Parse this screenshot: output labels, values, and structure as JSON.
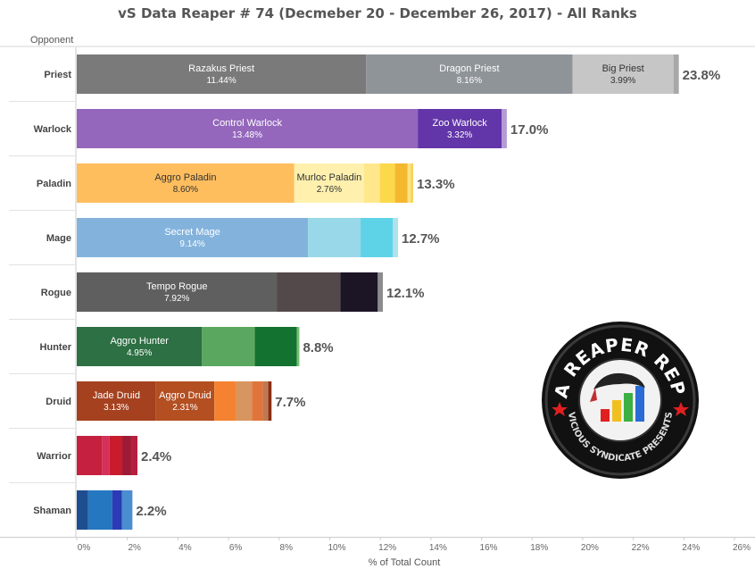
{
  "title": "vS Data Reaper # 74 (Decmeber  20 - December 26, 2017) - All Ranks",
  "chart_data": {
    "type": "bar",
    "orientation": "horizontal",
    "stacked": true,
    "title": "vS Data Reaper # 74 (Decmeber  20 - December 26, 2017) - All Ranks",
    "ylabel": "Opponent",
    "xlabel": "% of Total Count",
    "xlim": [
      0,
      26
    ],
    "xticks": [
      "0%",
      "2%",
      "4%",
      "6%",
      "8%",
      "10%",
      "12%",
      "14%",
      "16%",
      "18%",
      "20%",
      "22%",
      "24%",
      "26%"
    ],
    "grid": false,
    "categories": [
      {
        "name": "Priest",
        "total_label": "23.8%",
        "segments": [
          {
            "name": "Razakus Priest",
            "value": 11.44,
            "label": "11.44%",
            "color": "#7a7a7a"
          },
          {
            "name": "Dragon Priest",
            "value": 8.16,
            "label": "8.16%",
            "color": "#8f9499"
          },
          {
            "name": "Big Priest",
            "value": 3.99,
            "label": "3.99%",
            "color": "#c6c6c6"
          },
          {
            "value": 0.21,
            "color": "#a8a8a8"
          }
        ]
      },
      {
        "name": "Warlock",
        "total_label": "17.0%",
        "segments": [
          {
            "name": "Control Warlock",
            "value": 13.48,
            "label": "13.48%",
            "color": "#9467bd"
          },
          {
            "name": "Zoo Warlock",
            "value": 3.32,
            "label": "3.32%",
            "color": "#6236a8"
          },
          {
            "value": 0.2,
            "color": "#b49ad6"
          }
        ]
      },
      {
        "name": "Paladin",
        "total_label": "13.3%",
        "segments": [
          {
            "name": "Aggro Paladin",
            "value": 8.6,
            "label": "8.60%",
            "color": "#ffbe5e"
          },
          {
            "name": "Murloc Paladin",
            "value": 2.76,
            "label": "2.76%",
            "color": "#fff0ae"
          },
          {
            "value": 0.62,
            "color": "#ffe88c"
          },
          {
            "value": 0.6,
            "color": "#fcd84b"
          },
          {
            "value": 0.5,
            "color": "#f4b82e"
          },
          {
            "value": 0.12,
            "color": "#fce385"
          },
          {
            "value": 0.1,
            "color": "#f7d15c"
          }
        ]
      },
      {
        "name": "Mage",
        "total_label": "12.7%",
        "segments": [
          {
            "name": "Secret Mage",
            "value": 9.14,
            "label": "9.14%",
            "color": "#83b3dc"
          },
          {
            "value": 2.08,
            "color": "#98d8e8"
          },
          {
            "value": 1.28,
            "color": "#5ed3e8"
          },
          {
            "value": 0.2,
            "color": "#aee2ee"
          }
        ]
      },
      {
        "name": "Rogue",
        "total_label": "12.1%",
        "segments": [
          {
            "name": "Tempo Rogue",
            "value": 7.92,
            "label": "7.92%",
            "color": "#5f5f5f"
          },
          {
            "value": 2.5,
            "color": "#53484a"
          },
          {
            "value": 1.48,
            "color": "#1c1525"
          },
          {
            "value": 0.2,
            "color": "#8c8c8c"
          }
        ]
      },
      {
        "name": "Hunter",
        "total_label": "8.8%",
        "segments": [
          {
            "name": "Aggro Hunter",
            "value": 4.95,
            "label": "4.95%",
            "color": "#2d7043"
          },
          {
            "value": 2.09,
            "color": "#5aa85f"
          },
          {
            "value": 1.66,
            "color": "#13722f"
          },
          {
            "value": 0.1,
            "color": "#75c16f"
          }
        ]
      },
      {
        "name": "Druid",
        "total_label": "7.7%",
        "segments": [
          {
            "name": "Jade Druid",
            "value": 3.13,
            "label": "3.13%",
            "color": "#a5411f"
          },
          {
            "name": "Aggro Druid",
            "value": 2.31,
            "label": "2.31%",
            "color": "#b44f22"
          },
          {
            "value": 0.86,
            "color": "#f58230"
          },
          {
            "value": 0.62,
            "color": "#d7955f"
          },
          {
            "value": 0.45,
            "color": "#e0753c"
          },
          {
            "value": 0.2,
            "color": "#bb7a55"
          },
          {
            "value": 0.13,
            "color": "#8b2d12"
          }
        ]
      },
      {
        "name": "Warrior",
        "total_label": "2.4%",
        "segments": [
          {
            "value": 1.0,
            "color": "#c5203f"
          },
          {
            "value": 0.3,
            "color": "#d4305a"
          },
          {
            "value": 0.5,
            "color": "#c81c2c"
          },
          {
            "value": 0.35,
            "color": "#9e1a35"
          },
          {
            "value": 0.25,
            "color": "#b52040"
          }
        ]
      },
      {
        "name": "Shaman",
        "total_label": "2.2%",
        "segments": [
          {
            "value": 0.45,
            "color": "#1f4e90"
          },
          {
            "value": 0.95,
            "color": "#2577c0"
          },
          {
            "value": 0.38,
            "color": "#2a3bb5"
          },
          {
            "value": 0.42,
            "color": "#4a8ed0"
          }
        ]
      }
    ]
  },
  "logo": {
    "main_text": "DATA REAPER REPORT",
    "sub_text": "VICIOUS SYNDICATE PRESENTS"
  }
}
